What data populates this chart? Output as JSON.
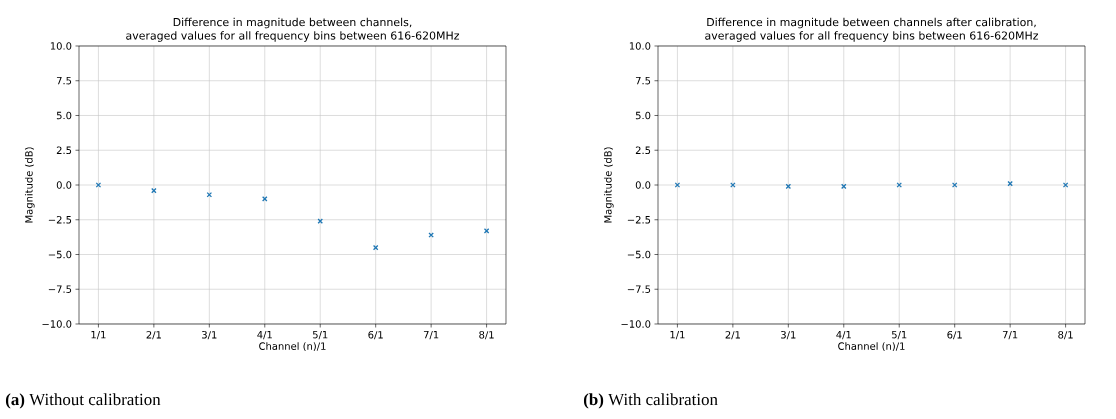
{
  "chart_data": [
    {
      "type": "scatter",
      "title": "Difference in magnitude between channels,",
      "subtitle": "averaged values for all frequency bins between 616-620MHz",
      "xlabel": "Channel (n)/1",
      "ylabel": "Magnitude (dB)",
      "categories": [
        "1/1",
        "2/1",
        "3/1",
        "4/1",
        "5/1",
        "6/1",
        "7/1",
        "8/1"
      ],
      "values": [
        0,
        -0.4,
        -0.7,
        -1.0,
        -2.6,
        -4.5,
        -3.6,
        -3.3
      ],
      "color": "#1f77b4",
      "marker": "cross",
      "grid": true,
      "ylim": [
        -10,
        10
      ],
      "yticks": [
        {
          "value": -10,
          "label": "−10.0"
        },
        {
          "value": -7.5,
          "label": "−7.5"
        },
        {
          "value": -5,
          "label": "−5.0"
        },
        {
          "value": -2.5,
          "label": "−2.5"
        },
        {
          "value": 0,
          "label": "0.0"
        },
        {
          "value": 2.5,
          "label": "2.5"
        },
        {
          "value": 5,
          "label": "5.0"
        },
        {
          "value": 7.5,
          "label": "7.5"
        },
        {
          "value": 10,
          "label": "10.0"
        }
      ],
      "annotations": [
        "**(a)** Without calibration"
      ]
    },
    {
      "type": "scatter",
      "title": "Difference in magnitude between channels after calibration,",
      "subtitle": "averaged values for all frequency bins between 616-620MHz",
      "xlabel": "Channel (n)/1",
      "ylabel": "Magnitude (dB)",
      "categories": [
        "1/1",
        "2/1",
        "3/1",
        "4/1",
        "5/1",
        "6/1",
        "7/1",
        "8/1"
      ],
      "values": [
        0,
        0,
        -0.1,
        -0.1,
        0,
        0,
        0.1,
        0
      ],
      "color": "#1f77b4",
      "marker": "cross",
      "grid": true,
      "ylim": [
        -10,
        10
      ],
      "yticks": [
        {
          "value": -10,
          "label": "−10.0"
        },
        {
          "value": -7.5,
          "label": "−7.5"
        },
        {
          "value": -5,
          "label": "−5.0"
        },
        {
          "value": -2.5,
          "label": "−2.5"
        },
        {
          "value": 0,
          "label": "0.0"
        },
        {
          "value": 2.5,
          "label": "2.5"
        },
        {
          "value": 5,
          "label": "5.0"
        },
        {
          "value": 7.5,
          "label": "7.5"
        },
        {
          "value": 10,
          "label": "10.0"
        }
      ],
      "annotations": [
        "**(b)** With calibration"
      ]
    }
  ]
}
